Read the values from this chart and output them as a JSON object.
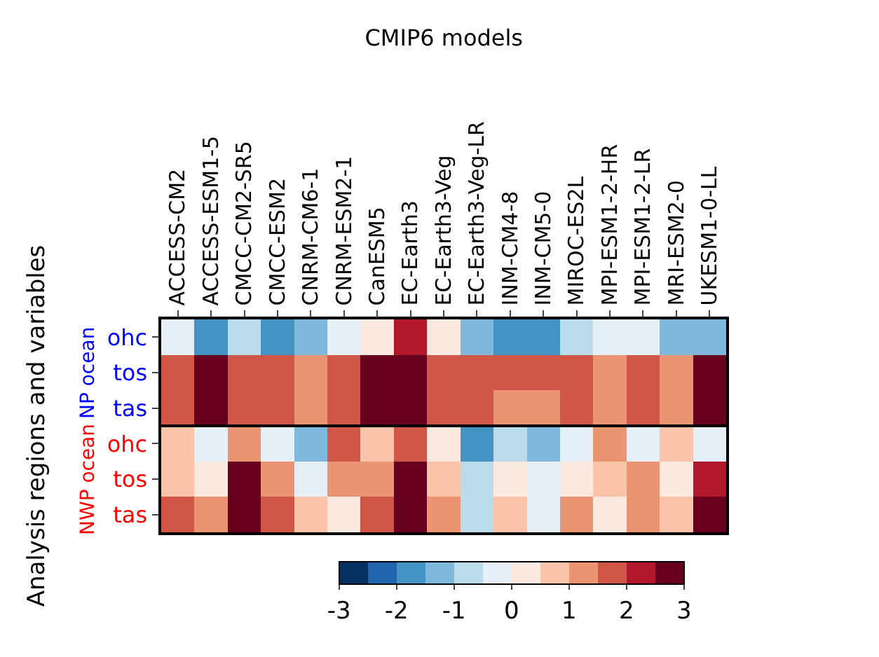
{
  "chart_data": {
    "type": "heatmap",
    "title": "CMIP6 models",
    "ylabel": "Analysis regions and variables",
    "annotations": [
      "NP ocean",
      "NWP ocean"
    ],
    "categories": [
      "ACCESS-CM2",
      "ACCESS-ESM1-5",
      "CMCC-CM2-SR5",
      "CMCC-ESM2",
      "CNRM-CM6-1",
      "CNRM-ESM2-1",
      "CanESM5",
      "EC-Earth3",
      "EC-Earth3-Veg",
      "EC-Earth3-Veg-LR",
      "INM-CM4-8",
      "INM-CM5-0",
      "MIROC-ES2L",
      "MPI-ESM1-2-HR",
      "MPI-ESM1-2-LR",
      "MRI-ESM2-0",
      "UKESM1-0-LL"
    ],
    "y_categories": [
      "ohc",
      "tos",
      "tas",
      "ohc",
      "tos",
      "tas"
    ],
    "cells": [
      [
        -0.25,
        -1.75,
        -0.75,
        -1.75,
        -1.25,
        -0.25,
        0.25,
        2.25,
        0.25,
        -1.25,
        -1.75,
        -1.75,
        -0.75,
        -0.25,
        -0.25,
        -1.25,
        -1.25
      ],
      [
        1.75,
        2.75,
        1.75,
        1.75,
        1.25,
        1.75,
        2.75,
        2.75,
        1.75,
        1.75,
        1.75,
        1.75,
        1.75,
        1.25,
        1.75,
        1.25,
        2.75
      ],
      [
        1.75,
        2.75,
        1.75,
        1.75,
        1.25,
        1.75,
        2.75,
        2.75,
        1.75,
        1.75,
        1.25,
        1.25,
        1.75,
        1.25,
        1.75,
        1.25,
        2.75
      ],
      [
        0.75,
        -0.25,
        1.25,
        -0.25,
        -1.25,
        1.75,
        0.75,
        1.75,
        0.25,
        -1.75,
        -0.75,
        -1.25,
        -0.25,
        1.25,
        -0.25,
        0.75,
        -0.25
      ],
      [
        0.75,
        0.25,
        2.75,
        1.25,
        -0.25,
        1.25,
        1.25,
        2.75,
        0.75,
        -0.75,
        0.25,
        -0.25,
        0.25,
        0.75,
        1.25,
        0.25,
        2.25
      ],
      [
        1.75,
        1.25,
        2.75,
        1.75,
        0.75,
        0.25,
        1.75,
        2.75,
        1.25,
        -0.75,
        0.75,
        -0.25,
        1.25,
        0.25,
        1.25,
        0.75,
        2.75
      ]
    ],
    "clim": [
      -3,
      3
    ],
    "cticks": [
      -3,
      -2,
      -1,
      0,
      1,
      2,
      3
    ]
  }
}
